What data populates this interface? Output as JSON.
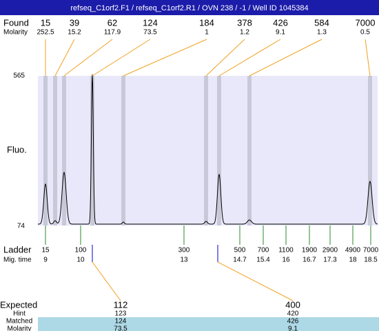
{
  "header": {
    "title": "refseq_C1orf2.F1 / refseq_C1orf2.R1 / OVN 238 / -1 / Well ID 1045384"
  },
  "found": {
    "label": "Found",
    "molarity_label": "Molarity",
    "sizes": [
      15,
      39,
      62,
      124,
      184,
      378,
      426,
      584,
      7000
    ],
    "molarities": [
      252.5,
      15.2,
      117.9,
      73.5,
      1,
      1.2,
      9.1,
      1.3,
      0.5
    ]
  },
  "fluo": {
    "label": "Fluo.",
    "max": 565,
    "min": 74
  },
  "ladder": {
    "label": "Ladder",
    "mig_label": "Mig. time",
    "sizes": [
      15,
      100,
      300,
      500,
      700,
      1100,
      1900,
      2900,
      4900,
      7000
    ],
    "mig_times": [
      9,
      10,
      13,
      14.7,
      15.4,
      16,
      16.7,
      17.3,
      18,
      18.5
    ]
  },
  "table": {
    "labels": [
      "Expected",
      "Hint",
      "Matched",
      "Molarity"
    ],
    "columns": [
      [
        112,
        123,
        124,
        73.5
      ],
      [
        400,
        420,
        426,
        9.1
      ]
    ]
  }
}
